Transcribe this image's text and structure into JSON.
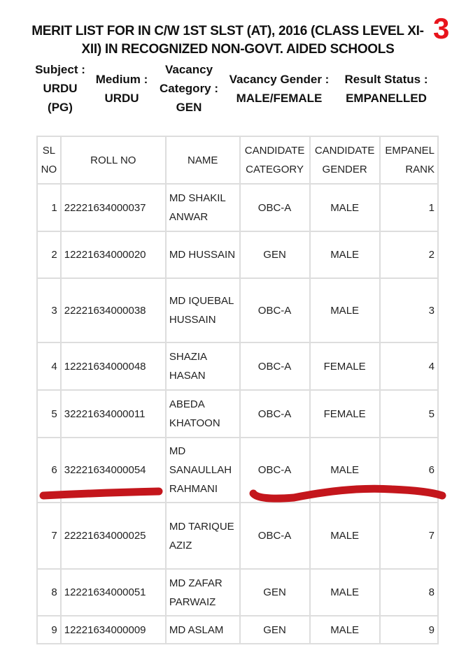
{
  "title": "MERIT LIST FOR IN C/W 1ST SLST (AT), 2016 (CLASS LEVEL XI-XII) IN RECOGNIZED NON-GOVT. AIDED SCHOOLS",
  "page_mark": "3",
  "meta": [
    {
      "label": "Subject :",
      "value": "URDU (PG)"
    },
    {
      "label": "Medium :",
      "value": "URDU"
    },
    {
      "label": "Vacancy Category :",
      "value": "GEN"
    },
    {
      "label": "Vacancy Gender :",
      "value": "MALE/FEMALE"
    },
    {
      "label": "Result Status :",
      "value": "EMPANELLED"
    }
  ],
  "columns": [
    "SL NO",
    "ROLL NO",
    "NAME",
    "CANDIDATE CATEGORY",
    "CANDIDATE GENDER",
    "EMPANEL RANK"
  ],
  "rows": [
    [
      "1",
      "22221634000037",
      "MD SHAKIL ANWAR",
      "OBC-A",
      "MALE",
      "1"
    ],
    [
      "2",
      "12221634000020",
      "MD HUSSAIN",
      "GEN",
      "MALE",
      "2"
    ],
    [
      "3",
      "22221634000038",
      "MD IQUEBAL HUSSAIN",
      "OBC-A",
      "MALE",
      "3"
    ],
    [
      "4",
      "12221634000048",
      "SHAZIA HASAN",
      "OBC-A",
      "FEMALE",
      "4"
    ],
    [
      "5",
      "32221634000011",
      "ABEDA KHATOON",
      "OBC-A",
      "FEMALE",
      "5"
    ],
    [
      "6",
      "32221634000054",
      "MD SANAULLAH RAHMANI",
      "OBC-A",
      "MALE",
      "6"
    ],
    [
      "7",
      "22221634000025",
      "MD TARIQUE AZIZ",
      "OBC-A",
      "MALE",
      "7"
    ],
    [
      "8",
      "12221634000051",
      "MD ZAFAR PARWAIZ",
      "GEN",
      "MALE",
      "8"
    ],
    [
      "9",
      "12221634000009",
      "MD ASLAM",
      "GEN",
      "MALE",
      "9"
    ]
  ],
  "annotation_color": "#c4161c"
}
